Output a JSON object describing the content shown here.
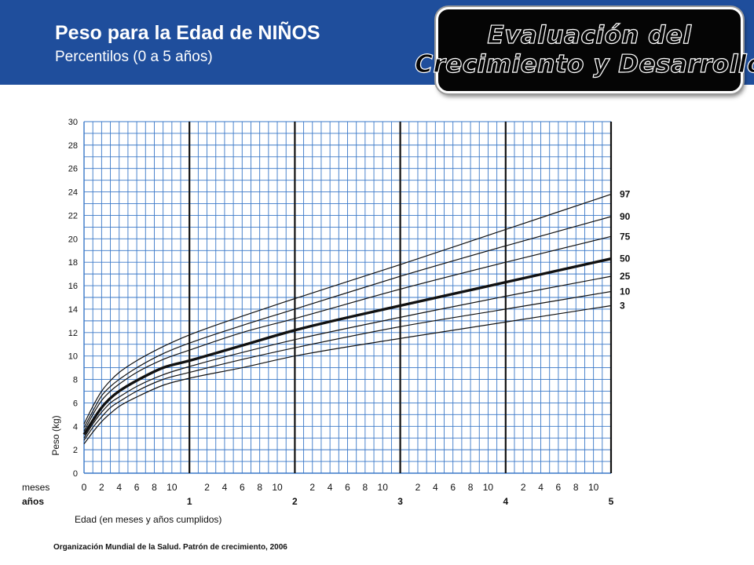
{
  "header": {
    "title": "Peso para la Edad de NIÑOS",
    "subtitle": "Percentilos (0 a 5 años)",
    "badge_line1": "Evaluación del",
    "badge_line2": "Crecimiento y Desarrollo"
  },
  "footer": {
    "source": "Organización Mundial de la Salud. Patrón de crecimiento, 2006"
  },
  "colors": {
    "header_bg": "#1f4e9c",
    "grid": "#3a78c8",
    "curves": "#111111",
    "badge_bg": "#050505"
  },
  "chart_data": {
    "type": "line",
    "title": "Peso para la Edad de NIÑOS",
    "subtitle": "Percentilos (0 a 5 años)",
    "xlabel": "Edad (en meses y años cumplidos)",
    "ylabel": "Peso (kg)",
    "x_unit": "months",
    "xlim": [
      0,
      60
    ],
    "ylim": [
      0,
      30
    ],
    "grid": true,
    "y_ticks": [
      0,
      2,
      4,
      6,
      8,
      10,
      12,
      14,
      16,
      18,
      20,
      22,
      24,
      26,
      28,
      30
    ],
    "row_label_months": "meses",
    "row_label_years": "años",
    "month_ticks": [
      {
        "x": 0,
        "label": "0"
      },
      {
        "x": 2,
        "label": "2"
      },
      {
        "x": 4,
        "label": "4"
      },
      {
        "x": 6,
        "label": "6"
      },
      {
        "x": 8,
        "label": "8"
      },
      {
        "x": 10,
        "label": "10"
      },
      {
        "x": 14,
        "label": "2"
      },
      {
        "x": 16,
        "label": "4"
      },
      {
        "x": 18,
        "label": "6"
      },
      {
        "x": 20,
        "label": "8"
      },
      {
        "x": 22,
        "label": "10"
      },
      {
        "x": 26,
        "label": "2"
      },
      {
        "x": 28,
        "label": "4"
      },
      {
        "x": 30,
        "label": "6"
      },
      {
        "x": 32,
        "label": "8"
      },
      {
        "x": 34,
        "label": "10"
      },
      {
        "x": 38,
        "label": "2"
      },
      {
        "x": 40,
        "label": "4"
      },
      {
        "x": 42,
        "label": "6"
      },
      {
        "x": 44,
        "label": "8"
      },
      {
        "x": 46,
        "label": "10"
      },
      {
        "x": 50,
        "label": "2"
      },
      {
        "x": 52,
        "label": "4"
      },
      {
        "x": 54,
        "label": "6"
      },
      {
        "x": 56,
        "label": "8"
      },
      {
        "x": 58,
        "label": "10"
      }
    ],
    "year_ticks": [
      {
        "x": 12,
        "label": "1"
      },
      {
        "x": 24,
        "label": "2"
      },
      {
        "x": 36,
        "label": "3"
      },
      {
        "x": 48,
        "label": "4"
      },
      {
        "x": 60,
        "label": "5"
      }
    ],
    "x": [
      0,
      1,
      2,
      3,
      4,
      6,
      9,
      12,
      18,
      24,
      36,
      48,
      60
    ],
    "series": [
      {
        "name": "97",
        "values": [
          4.2,
          5.7,
          7.0,
          7.9,
          8.6,
          9.6,
          10.8,
          11.8,
          13.4,
          14.9,
          17.8,
          20.8,
          23.8
        ]
      },
      {
        "name": "90",
        "values": [
          3.9,
          5.3,
          6.6,
          7.4,
          8.0,
          9.0,
          10.2,
          11.1,
          12.6,
          14.0,
          16.8,
          19.4,
          21.9
        ]
      },
      {
        "name": "75",
        "values": [
          3.6,
          5.0,
          6.2,
          7.0,
          7.6,
          8.6,
          9.7,
          10.5,
          12.0,
          13.2,
          15.7,
          18.0,
          20.2
        ]
      },
      {
        "name": "50",
        "values": [
          3.3,
          4.5,
          5.6,
          6.4,
          7.0,
          7.9,
          9.0,
          9.6,
          10.9,
          12.2,
          14.3,
          16.3,
          18.3
        ]
      },
      {
        "name": "25",
        "values": [
          3.0,
          4.2,
          5.2,
          6.0,
          6.5,
          7.4,
          8.4,
          9.1,
          10.3,
          11.4,
          13.3,
          15.1,
          16.8
        ]
      },
      {
        "name": "10",
        "values": [
          2.8,
          3.9,
          4.8,
          5.6,
          6.1,
          7.0,
          8.0,
          8.6,
          9.7,
          10.7,
          12.5,
          14.0,
          15.5
        ]
      },
      {
        "name": "3",
        "values": [
          2.5,
          3.5,
          4.4,
          5.1,
          5.7,
          6.5,
          7.5,
          8.1,
          9.0,
          10.0,
          11.5,
          12.9,
          14.3
        ]
      }
    ]
  }
}
